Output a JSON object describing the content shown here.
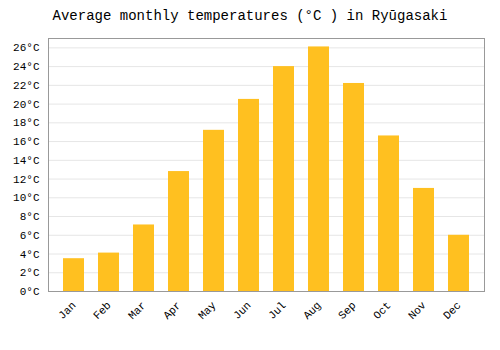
{
  "chart_data": {
    "type": "bar",
    "title": "Average monthly temperatures (°C ) in Ryūgasaki",
    "categories": [
      "Jan",
      "Feb",
      "Mar",
      "Apr",
      "May",
      "Jun",
      "Jul",
      "Aug",
      "Sep",
      "Oct",
      "Nov",
      "Dec"
    ],
    "values": [
      3.5,
      4.1,
      7.1,
      12.8,
      17.2,
      20.5,
      24.0,
      26.1,
      22.2,
      16.6,
      11.0,
      6.0
    ],
    "color": "#FFC020",
    "ylim": [
      0,
      27
    ],
    "yticks": [
      {
        "value": 0,
        "label": "0°C"
      },
      {
        "value": 2,
        "label": "2°C"
      },
      {
        "value": 4,
        "label": "4°C"
      },
      {
        "value": 6,
        "label": "6°C"
      },
      {
        "value": 8,
        "label": "8°C"
      },
      {
        "value": 10,
        "label": "10°C"
      },
      {
        "value": 12,
        "label": "12°C"
      },
      {
        "value": 14,
        "label": "14°C"
      },
      {
        "value": 16,
        "label": "16°C"
      },
      {
        "value": 18,
        "label": "18°C"
      },
      {
        "value": 20,
        "label": "20°C"
      },
      {
        "value": 22,
        "label": "22°C"
      },
      {
        "value": 24,
        "label": "24°C"
      },
      {
        "value": 26,
        "label": "26°C"
      }
    ],
    "grid": true
  }
}
